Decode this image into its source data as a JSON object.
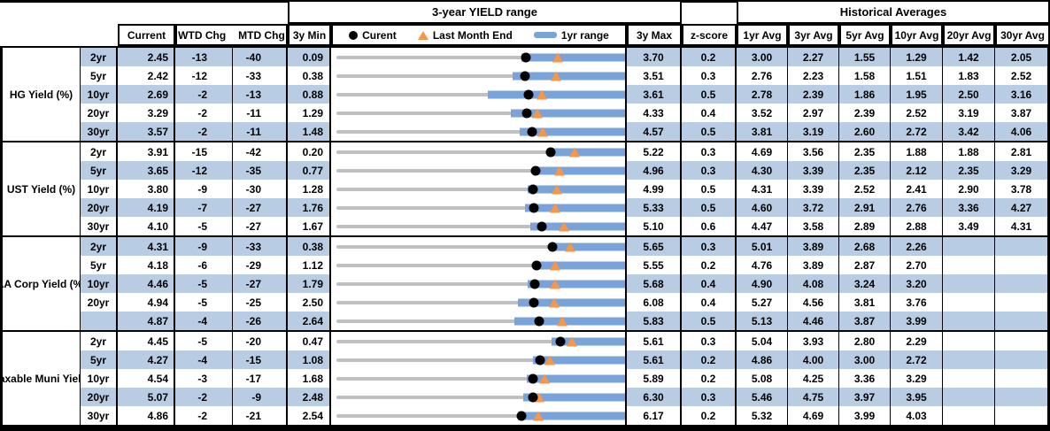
{
  "title_bar": {
    "range_title": "3-year YIELD range",
    "hist_title": "Historical Averages"
  },
  "columns": {
    "current": "Current",
    "wtd": "WTD Chg",
    "mtd": "MTD Chg",
    "min": "3y Min",
    "max": "3y Max",
    "z": "z-score",
    "avgs": [
      "1yr Avg",
      "3yr Avg",
      "5yr Avg",
      "10yr Avg",
      "20yr Avg",
      "30yr Avg"
    ]
  },
  "legend": {
    "current": "Curent",
    "last_month": "Last Month End",
    "range": "1yr range"
  },
  "colors": {
    "stripe": "#b8cce4",
    "bar_1yr": "#7aa3d9",
    "track": "#c0c0c0",
    "current_dot": "#000000",
    "last_month_marker": "#F79646",
    "border": "#000000"
  },
  "chart_data": {
    "type": "table",
    "subtype": "bullet-range",
    "title": "3-year YIELD range",
    "legend_entries": [
      "Curent",
      "Last Month End",
      "1yr range"
    ],
    "notes": "Each row: gray track spans 3y Min..3y Max; blue bar = 1yr range (ends at 3y Max); black dot = current; orange triangle = last month end (current - MTD chg in bps).",
    "groups": [
      {
        "label": "HG Yield (%)",
        "rows": [
          {
            "tenor": "2yr",
            "current": "2.45",
            "wtd": "-13",
            "mtd": "-40",
            "min": "0.09",
            "max": "3.70",
            "last_month_end": 2.85,
            "bar_low": 2.4,
            "z": "0.2",
            "avgs": [
              "3.00",
              "2.27",
              "1.55",
              "1.29",
              "1.42",
              "2.05"
            ]
          },
          {
            "tenor": "5yr",
            "current": "2.42",
            "wtd": "-12",
            "mtd": "-33",
            "min": "0.38",
            "max": "3.51",
            "last_month_end": 2.75,
            "bar_low": 2.28,
            "z": "0.3",
            "avgs": [
              "2.76",
              "2.23",
              "1.58",
              "1.51",
              "1.83",
              "2.52"
            ]
          },
          {
            "tenor": "10yr",
            "current": "2.69",
            "wtd": "-2",
            "mtd": "-13",
            "min": "0.88",
            "max": "3.61",
            "last_month_end": 2.82,
            "bar_low": 2.31,
            "z": "0.5",
            "avgs": [
              "2.78",
              "2.39",
              "1.86",
              "1.95",
              "2.50",
              "3.16"
            ]
          },
          {
            "tenor": "20yr",
            "current": "3.29",
            "wtd": "-2",
            "mtd": "-11",
            "min": "1.29",
            "max": "4.33",
            "last_month_end": 3.4,
            "bar_low": 3.12,
            "z": "0.4",
            "avgs": [
              "3.52",
              "2.97",
              "2.39",
              "2.52",
              "3.19",
              "3.87"
            ]
          },
          {
            "tenor": "30yr",
            "current": "3.57",
            "wtd": "-2",
            "mtd": "-11",
            "min": "1.48",
            "max": "4.57",
            "last_month_end": 3.68,
            "bar_low": 3.44,
            "z": "0.5",
            "avgs": [
              "3.81",
              "3.19",
              "2.60",
              "2.72",
              "3.42",
              "4.06"
            ]
          }
        ]
      },
      {
        "label": "UST Yield (%)",
        "rows": [
          {
            "tenor": "2yr",
            "current": "3.91",
            "wtd": "-15",
            "mtd": "-42",
            "min": "0.20",
            "max": "5.22",
            "last_month_end": 4.33,
            "bar_low": 3.86,
            "z": "0.3",
            "avgs": [
              "4.69",
              "3.56",
              "2.35",
              "1.88",
              "1.88",
              "2.81"
            ]
          },
          {
            "tenor": "5yr",
            "current": "3.65",
            "wtd": "-12",
            "mtd": "-35",
            "min": "0.77",
            "max": "4.96",
            "last_month_end": 4.0,
            "bar_low": 3.65,
            "z": "0.3",
            "avgs": [
              "4.30",
              "3.39",
              "2.35",
              "2.12",
              "2.35",
              "3.29"
            ]
          },
          {
            "tenor": "10yr",
            "current": "3.80",
            "wtd": "-9",
            "mtd": "-30",
            "min": "1.28",
            "max": "4.99",
            "last_month_end": 4.1,
            "bar_low": 3.73,
            "z": "0.5",
            "avgs": [
              "4.31",
              "3.39",
              "2.52",
              "2.41",
              "2.90",
              "3.78"
            ]
          },
          {
            "tenor": "20yr",
            "current": "4.19",
            "wtd": "-7",
            "mtd": "-27",
            "min": "1.76",
            "max": "5.33",
            "last_month_end": 4.46,
            "bar_low": 4.08,
            "z": "0.5",
            "avgs": [
              "4.60",
              "3.72",
              "2.91",
              "2.76",
              "3.36",
              "4.27"
            ]
          },
          {
            "tenor": "30yr",
            "current": "4.10",
            "wtd": "-5",
            "mtd": "-27",
            "min": "1.67",
            "max": "5.10",
            "last_month_end": 4.37,
            "bar_low": 3.97,
            "z": "0.6",
            "avgs": [
              "4.47",
              "3.58",
              "2.89",
              "2.88",
              "3.49",
              "4.31"
            ]
          }
        ]
      },
      {
        "label": "AA Corp Yield (%)",
        "rows": [
          {
            "tenor": "2yr",
            "current": "4.31",
            "wtd": "-9",
            "mtd": "-33",
            "min": "0.38",
            "max": "5.65",
            "last_month_end": 4.64,
            "bar_low": 4.27,
            "z": "0.3",
            "avgs": [
              "5.01",
              "3.89",
              "2.68",
              "2.26",
              "",
              ""
            ]
          },
          {
            "tenor": "5yr",
            "current": "4.18",
            "wtd": "-6",
            "mtd": "-29",
            "min": "1.12",
            "max": "5.55",
            "last_month_end": 4.47,
            "bar_low": 4.15,
            "z": "0.2",
            "avgs": [
              "4.76",
              "3.89",
              "2.87",
              "2.70",
              "",
              ""
            ]
          },
          {
            "tenor": "10yr",
            "current": "4.46",
            "wtd": "-5",
            "mtd": "-27",
            "min": "1.79",
            "max": "5.68",
            "last_month_end": 4.73,
            "bar_low": 4.36,
            "z": "0.4",
            "avgs": [
              "4.90",
              "4.08",
              "3.24",
              "3.20",
              "",
              ""
            ]
          },
          {
            "tenor": "20yr",
            "current": "4.94",
            "wtd": "-5",
            "mtd": "-25",
            "min": "2.50",
            "max": "6.08",
            "last_month_end": 5.19,
            "bar_low": 4.74,
            "z": "0.4",
            "avgs": [
              "5.27",
              "4.56",
              "3.81",
              "3.76",
              "",
              ""
            ]
          },
          {
            "tenor": "",
            "current": "4.87",
            "wtd": "-4",
            "mtd": "-26",
            "min": "2.64",
            "max": "5.83",
            "last_month_end": 5.13,
            "bar_low": 4.6,
            "z": "0.5",
            "avgs": [
              "5.13",
              "4.46",
              "3.87",
              "3.99",
              "",
              ""
            ]
          }
        ]
      },
      {
        "label": "AA Taxable Muni Yield (%)",
        "rows": [
          {
            "tenor": "2yr",
            "current": "4.45",
            "wtd": "-5",
            "mtd": "-20",
            "min": "0.47",
            "max": "5.61",
            "last_month_end": 4.65,
            "bar_low": 4.29,
            "z": "0.3",
            "avgs": [
              "5.04",
              "3.93",
              "2.80",
              "2.29",
              "",
              ""
            ]
          },
          {
            "tenor": "5yr",
            "current": "4.27",
            "wtd": "-4",
            "mtd": "-15",
            "min": "1.08",
            "max": "5.61",
            "last_month_end": 4.42,
            "bar_low": 4.16,
            "z": "0.2",
            "avgs": [
              "4.86",
              "4.00",
              "3.00",
              "2.72",
              "",
              ""
            ]
          },
          {
            "tenor": "10yr",
            "current": "4.54",
            "wtd": "-3",
            "mtd": "-17",
            "min": "1.68",
            "max": "5.89",
            "last_month_end": 4.71,
            "bar_low": 4.45,
            "z": "0.2",
            "avgs": [
              "5.08",
              "4.25",
              "3.36",
              "3.29",
              "",
              ""
            ]
          },
          {
            "tenor": "20yr",
            "current": "5.07",
            "wtd": "-2",
            "mtd": "-9",
            "min": "2.48",
            "max": "6.30",
            "last_month_end": 5.16,
            "bar_low": 4.94,
            "z": "0.3",
            "avgs": [
              "5.46",
              "4.75",
              "3.97",
              "3.95",
              "",
              ""
            ]
          },
          {
            "tenor": "30yr",
            "current": "4.86",
            "wtd": "-2",
            "mtd": "-21",
            "min": "2.54",
            "max": "6.17",
            "last_month_end": 5.07,
            "bar_low": 4.82,
            "z": "0.2",
            "avgs": [
              "5.32",
              "4.69",
              "3.99",
              "4.03",
              "",
              ""
            ]
          }
        ]
      }
    ]
  }
}
